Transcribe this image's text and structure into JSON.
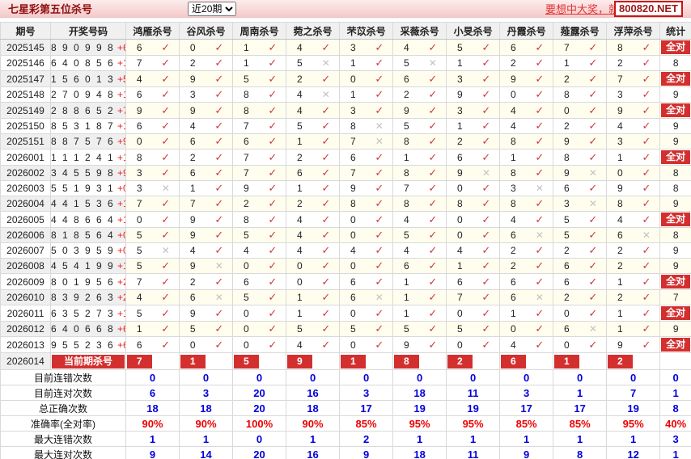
{
  "header": {
    "title": "七星彩第五位杀号",
    "range_select_value": "近20期",
    "promo_text": "要想中大奖，就",
    "promo_site": "800820.NET"
  },
  "table": {
    "col_headers": [
      "期号",
      "开奖号码",
      "鸿雁杀号",
      "谷风杀号",
      "周南杀号",
      "菀之杀号",
      "芣苡杀号",
      "采薇杀号",
      "小旻杀号",
      "丹霞杀号",
      "薤露杀号",
      "浮萍杀号",
      "统计"
    ],
    "all_correct_label": "全对",
    "rows": [
      {
        "period": "2025145",
        "code": "890998",
        "extra": "+6",
        "kills": [
          6,
          0,
          1,
          4,
          3,
          4,
          5,
          6,
          7,
          8
        ],
        "marks": [
          1,
          1,
          1,
          1,
          1,
          1,
          1,
          1,
          1,
          1
        ],
        "result": "全对"
      },
      {
        "period": "2025146",
        "code": "640856",
        "extra": "+13",
        "kills": [
          7,
          2,
          1,
          5,
          1,
          5,
          1,
          2,
          1,
          2
        ],
        "marks": [
          1,
          1,
          1,
          0,
          1,
          0,
          1,
          1,
          1,
          1
        ],
        "result": "8"
      },
      {
        "period": "2025147",
        "code": "156013",
        "extra": "+5",
        "kills": [
          4,
          9,
          5,
          2,
          0,
          6,
          3,
          9,
          2,
          7
        ],
        "marks": [
          1,
          1,
          1,
          1,
          1,
          1,
          1,
          1,
          1,
          1
        ],
        "result": "全对"
      },
      {
        "period": "2025148",
        "code": "270948",
        "extra": "+10",
        "kills": [
          6,
          3,
          8,
          4,
          1,
          2,
          9,
          0,
          8,
          3
        ],
        "marks": [
          1,
          1,
          1,
          0,
          1,
          1,
          1,
          1,
          1,
          1
        ],
        "result": "9"
      },
      {
        "period": "2025149",
        "code": "288652",
        "extra": "+7",
        "kills": [
          9,
          9,
          8,
          4,
          3,
          9,
          3,
          4,
          0,
          9
        ],
        "marks": [
          1,
          1,
          1,
          1,
          1,
          1,
          1,
          1,
          1,
          1
        ],
        "result": "全对"
      },
      {
        "period": "2025150",
        "code": "853187",
        "extra": "+1",
        "kills": [
          6,
          4,
          7,
          5,
          8,
          5,
          1,
          4,
          2,
          4
        ],
        "marks": [
          1,
          1,
          1,
          1,
          0,
          1,
          1,
          1,
          1,
          1
        ],
        "result": "9"
      },
      {
        "period": "2025151",
        "code": "887576",
        "extra": "+9",
        "kills": [
          0,
          6,
          6,
          1,
          7,
          8,
          2,
          8,
          9,
          3
        ],
        "marks": [
          1,
          1,
          1,
          1,
          0,
          1,
          1,
          1,
          1,
          1
        ],
        "result": "9"
      },
      {
        "period": "2026001",
        "code": "111241",
        "extra": "+1",
        "kills": [
          8,
          2,
          7,
          2,
          6,
          1,
          6,
          1,
          8,
          1
        ],
        "marks": [
          1,
          1,
          1,
          1,
          1,
          1,
          1,
          1,
          1,
          1
        ],
        "result": "全对"
      },
      {
        "period": "2026002",
        "code": "345598",
        "extra": "+9",
        "kills": [
          3,
          6,
          7,
          6,
          7,
          8,
          9,
          8,
          9,
          0
        ],
        "marks": [
          1,
          1,
          1,
          1,
          1,
          1,
          0,
          1,
          0,
          1
        ],
        "result": "8"
      },
      {
        "period": "2026003",
        "code": "551931",
        "extra": "+0",
        "kills": [
          3,
          1,
          9,
          1,
          9,
          7,
          0,
          3,
          6,
          9
        ],
        "marks": [
          0,
          1,
          1,
          1,
          1,
          1,
          1,
          0,
          1,
          1
        ],
        "result": "8"
      },
      {
        "period": "2026004",
        "code": "441536",
        "extra": "+1",
        "kills": [
          7,
          7,
          2,
          2,
          8,
          8,
          8,
          8,
          3,
          8
        ],
        "marks": [
          1,
          1,
          1,
          1,
          1,
          1,
          1,
          1,
          0,
          1
        ],
        "result": "9"
      },
      {
        "period": "2026005",
        "code": "448664",
        "extra": "+14",
        "kills": [
          0,
          9,
          8,
          4,
          0,
          4,
          0,
          4,
          5,
          4
        ],
        "marks": [
          1,
          1,
          1,
          1,
          1,
          1,
          1,
          1,
          1,
          1
        ],
        "result": "全对"
      },
      {
        "period": "2026006",
        "code": "818564",
        "extra": "+0",
        "kills": [
          5,
          9,
          5,
          4,
          0,
          5,
          0,
          6,
          5,
          6
        ],
        "marks": [
          1,
          1,
          1,
          1,
          1,
          1,
          1,
          0,
          1,
          0
        ],
        "result": "8"
      },
      {
        "period": "2026007",
        "code": "503959",
        "extra": "+0",
        "kills": [
          5,
          4,
          4,
          4,
          4,
          4,
          4,
          2,
          2,
          2
        ],
        "marks": [
          0,
          1,
          1,
          1,
          1,
          1,
          1,
          1,
          1,
          1
        ],
        "result": "9"
      },
      {
        "period": "2026008",
        "code": "454199",
        "extra": "+14",
        "kills": [
          5,
          9,
          0,
          0,
          0,
          6,
          1,
          2,
          6,
          2
        ],
        "marks": [
          1,
          0,
          1,
          1,
          1,
          1,
          1,
          1,
          1,
          1
        ],
        "result": "9"
      },
      {
        "period": "2026009",
        "code": "801956",
        "extra": "+2",
        "kills": [
          7,
          2,
          6,
          0,
          6,
          1,
          6,
          6,
          6,
          1
        ],
        "marks": [
          1,
          1,
          1,
          1,
          1,
          1,
          1,
          1,
          1,
          1
        ],
        "result": "全对"
      },
      {
        "period": "2026010",
        "code": "839263",
        "extra": "+2",
        "kills": [
          4,
          6,
          5,
          1,
          6,
          1,
          7,
          6,
          2,
          2
        ],
        "marks": [
          1,
          0,
          1,
          1,
          0,
          1,
          1,
          0,
          1,
          1
        ],
        "result": "7"
      },
      {
        "period": "2026011",
        "code": "635273",
        "extra": "+13",
        "kills": [
          5,
          9,
          0,
          1,
          0,
          1,
          0,
          1,
          0,
          1
        ],
        "marks": [
          1,
          1,
          1,
          1,
          1,
          1,
          1,
          1,
          1,
          1
        ],
        "result": "全对"
      },
      {
        "period": "2026012",
        "code": "640668",
        "extra": "+6",
        "kills": [
          1,
          5,
          0,
          5,
          5,
          5,
          5,
          0,
          6,
          1
        ],
        "marks": [
          1,
          1,
          1,
          1,
          1,
          1,
          1,
          1,
          0,
          1
        ],
        "result": "9"
      },
      {
        "period": "2026013",
        "code": "955236",
        "extra": "+6",
        "kills": [
          6,
          0,
          0,
          4,
          0,
          9,
          0,
          4,
          0,
          9
        ],
        "marks": [
          1,
          1,
          1,
          1,
          1,
          1,
          1,
          1,
          1,
          1
        ],
        "result": "全对"
      }
    ],
    "current_row": {
      "period": "2026014",
      "label": "当前期杀号",
      "kills": [
        7,
        1,
        5,
        9,
        1,
        8,
        2,
        6,
        1,
        2
      ],
      "result": ""
    },
    "summary_rows": [
      {
        "label": "目前连错次数",
        "color": "blue",
        "values": [
          "0",
          "0",
          "0",
          "0",
          "0",
          "0",
          "0",
          "0",
          "0",
          "0",
          "0"
        ]
      },
      {
        "label": "目前连对次数",
        "color": "blue",
        "values": [
          "6",
          "3",
          "20",
          "16",
          "3",
          "18",
          "11",
          "3",
          "1",
          "7",
          "1"
        ]
      },
      {
        "label": "总正确次数",
        "color": "blue",
        "values": [
          "18",
          "18",
          "20",
          "18",
          "17",
          "19",
          "19",
          "17",
          "17",
          "19",
          "8"
        ]
      },
      {
        "label": "准确率(全对率)",
        "color": "red",
        "values": [
          "90%",
          "90%",
          "100%",
          "90%",
          "85%",
          "95%",
          "95%",
          "85%",
          "85%",
          "95%",
          "40%"
        ]
      },
      {
        "label": "最大连错次数",
        "color": "blue",
        "values": [
          "1",
          "1",
          "0",
          "1",
          "2",
          "1",
          "1",
          "1",
          "1",
          "1",
          "3"
        ]
      },
      {
        "label": "最大连对次数",
        "color": "blue",
        "values": [
          "9",
          "14",
          "20",
          "16",
          "9",
          "18",
          "11",
          "9",
          "8",
          "12",
          "1"
        ]
      }
    ]
  }
}
